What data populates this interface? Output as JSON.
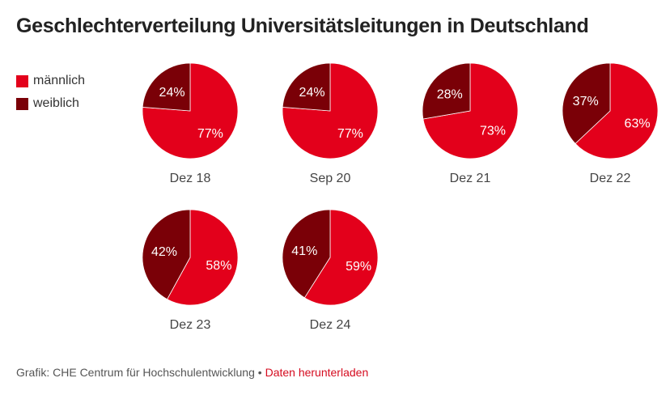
{
  "title": "Geschlechterverteilung Universitätsleitungen in Deutschland",
  "legend": [
    {
      "label": "männlich",
      "color": "#e3001b"
    },
    {
      "label": "weiblich",
      "color": "#7a0007"
    }
  ],
  "chart_data": {
    "type": "pie",
    "title": "Geschlechterverteilung Universitätsleitungen in Deutschland",
    "series_names": [
      "männlich",
      "weiblich"
    ],
    "colors": [
      "#e3001b",
      "#7a0007"
    ],
    "pies": [
      {
        "label": "Dez 18",
        "values": [
          77,
          24
        ],
        "value_labels": [
          "77%",
          "24%"
        ]
      },
      {
        "label": "Sep 20",
        "values": [
          77,
          24
        ],
        "value_labels": [
          "77%",
          "24%"
        ]
      },
      {
        "label": "Dez 21",
        "values": [
          73,
          28
        ],
        "value_labels": [
          "73%",
          "28%"
        ]
      },
      {
        "label": "Dez 22",
        "values": [
          63,
          37
        ],
        "value_labels": [
          "63%",
          "37%"
        ]
      },
      {
        "label": "Dez 23",
        "values": [
          58,
          42
        ],
        "value_labels": [
          "58%",
          "42%"
        ]
      },
      {
        "label": "Dez 24",
        "values": [
          59,
          41
        ],
        "value_labels": [
          "59%",
          "41%"
        ]
      }
    ]
  },
  "footer": {
    "source": "Grafik: CHE Centrum für Hochschulentwicklung",
    "separator": " • ",
    "link": "Daten herunterladen"
  }
}
